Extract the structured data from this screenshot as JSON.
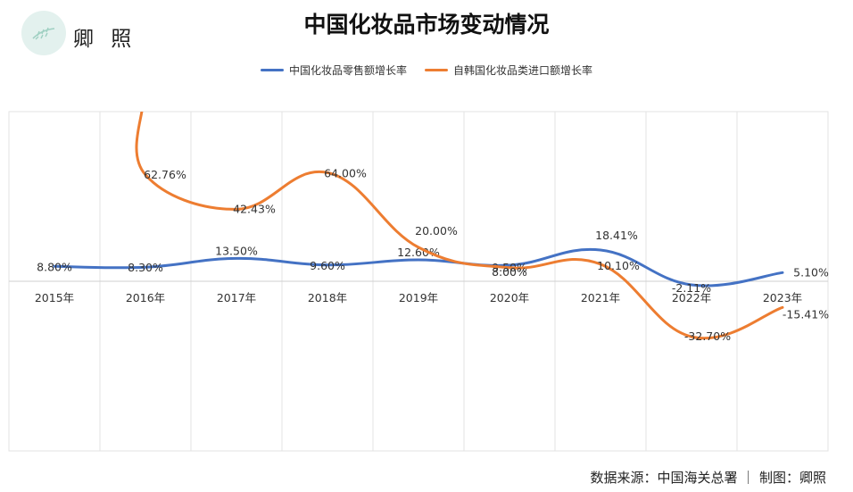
{
  "brand": {
    "name": "卿 照"
  },
  "footer": {
    "source": "数据来源：中国海关总署 ｜ 制图：卿照"
  },
  "colors": {
    "series_retail": "#4472c4",
    "series_import": "#ed7d31",
    "grid": "#e3e3e3",
    "logo_bg": "#e3f1ee"
  },
  "chart_data": {
    "type": "line",
    "title": "中国化妆品市场变动情况",
    "categories": [
      "2015年",
      "2016年",
      "2017年",
      "2018年",
      "2019年",
      "2020年",
      "2021年",
      "2022年",
      "2023年"
    ],
    "series": [
      {
        "name": "中国化妆品零售额增长率",
        "values": [
          8.8,
          8.3,
          13.5,
          9.6,
          12.6,
          9.5,
          18.41,
          -2.11,
          5.1
        ],
        "labels": [
          "8.80%",
          "8.30%",
          "13.50%",
          "9.60%",
          "12.60%",
          "9.50%",
          "18.41%",
          "-2.11%",
          "5.10%"
        ]
      },
      {
        "name": "自韩国化妆品类进口额增长率",
        "values": [
          null,
          62.76,
          42.43,
          64.0,
          20.0,
          8.0,
          10.1,
          -32.7,
          -15.41
        ],
        "labels": [
          "",
          "62.76%",
          "42.43%",
          "64.00%",
          "20.00%",
          "8.00%",
          "10.10%",
          "-32.70%",
          "-15.41%"
        ]
      }
    ],
    "ylim": [
      -100,
      100
    ],
    "grid": true,
    "legend": "top-center"
  }
}
